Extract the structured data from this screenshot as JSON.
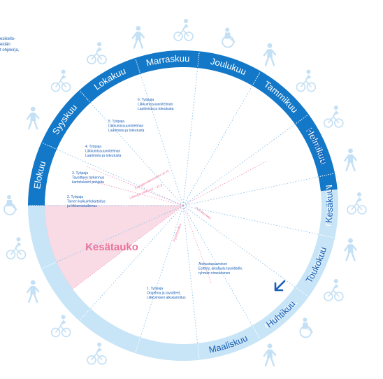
{
  "corner_text": [
    "esikello-",
    "eidän",
    "",
    "t ohjekirja,"
  ],
  "months_outer": [
    "Elokuu",
    "Syyskuu",
    "Lokakuu",
    "Marraskuu",
    "Joulukuu",
    "Tammikuu",
    "Helmikuu",
    "Maaliskuu",
    "Huhtikuu",
    "Toukokuu"
  ],
  "months_inner": [
    "Maaliskuu",
    "Huhtikuu",
    "Toukokuu",
    "Kesäkuu",
    "Heinäkuu"
  ],
  "pause_label": "Kesätauko",
  "workshops": [
    {
      "num": "1. Työpaja",
      "lines": [
        "Ongelma ja tavoitteet,",
        "Liikkumisen alkukartoitus"
      ]
    },
    {
      "num": "2. Työpaja",
      "lines": [
        "Toinen kulkuinfokartoitus",
        "ja liikkumistutkimus"
      ]
    },
    {
      "num": "3. Työpaja",
      "lines": [
        "Tavoitteen tarkennus",
        "kartoituksen pohjalta"
      ]
    },
    {
      "num": "4. Työpaja",
      "lines": [
        "Liikkumissuunnitelman",
        "Laatimista ja toteutusta"
      ]
    },
    {
      "num": "5. Työpaja",
      "lines": [
        "Liikkumissuunnitelman",
        "Laatimista ja toteutusta"
      ]
    },
    {
      "num": "6. Työpaja",
      "lines": [
        "Liikkumissuunnitelman",
        "Laatimista ja toteutusta"
      ]
    }
  ],
  "kickoff": [
    "Aloitustapaaminen",
    "Esittely, aikataulu tavoitteille,",
    "ryhmän nimeäminen"
  ],
  "pink_labels": [
    "Energiansäästöviikko vk 41",
    "Liikkujan viikko 16. - 22.9.",
    "Pyöräilyviikko",
    "Pyöräilyviikko"
  ],
  "colors": {
    "ring_dark": "#1378c8",
    "ring_light": "#c8e5f7",
    "accent_blue": "#1a5fb4",
    "pink_fill": "#f9dbe5",
    "pink_text": "#e8749b",
    "figure_light": "#c4e0f4"
  },
  "icons": [
    "cyclist-icon",
    "pedestrian-icon",
    "wheelchair-user-icon",
    "arrow-icon"
  ]
}
